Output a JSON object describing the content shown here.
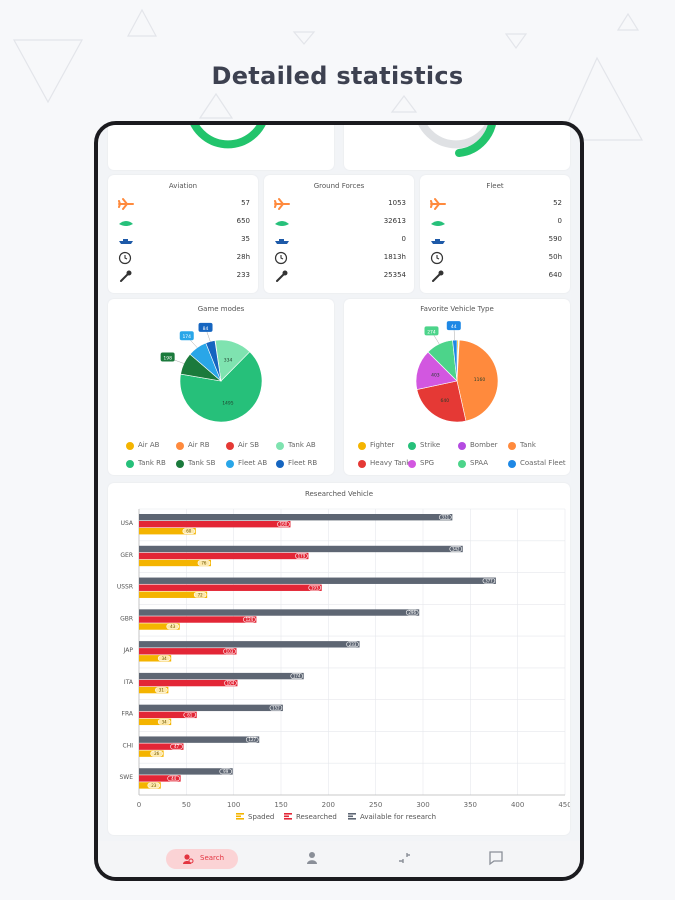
{
  "headline": "Detailed statistics",
  "stats": [
    {
      "title": "Aviation",
      "rows": [
        "57",
        "650",
        "35",
        "28h",
        "233"
      ]
    },
    {
      "title": "Ground Forces",
      "rows": [
        "1053",
        "32613",
        "0",
        "1813h",
        "25354"
      ]
    },
    {
      "title": "Fleet",
      "rows": [
        "52",
        "0",
        "590",
        "50h",
        "640"
      ]
    }
  ],
  "stat_icons": [
    "plane-icon",
    "tank-icon",
    "ship-icon",
    "clock-icon",
    "wrench-icon"
  ],
  "game_modes": {
    "title": "Game modes",
    "legend": [
      "Air AB",
      "Air RB",
      "Air SB",
      "Tank AB",
      "Tank RB",
      "Tank SB",
      "Fleet AB",
      "Fleet RB"
    ],
    "colors": [
      "#f4b400",
      "#ff8a3d",
      "#e53935",
      "#7fe3b0",
      "#26c07a",
      "#1b7a3c",
      "#29a6e8",
      "#1565c0"
    ],
    "values": [
      1,
      2,
      1,
      334,
      1495,
      198,
      174,
      84
    ],
    "slice_labels": [
      "",
      "",
      "",
      "334",
      "1495",
      "198",
      "174",
      "84"
    ]
  },
  "vehicle_types": {
    "title": "Favorite Vehicle Type",
    "legend": [
      "Fighter",
      "Strike",
      "Bomber",
      "Tank",
      "Heavy Tank",
      "SPG",
      "SPAA",
      "Coastal Fleet"
    ],
    "colors": [
      "#f4b400",
      "#26c07a",
      "#b44be1",
      "#ff8a3d",
      "#e53935",
      "#d257e0",
      "#4cd48a",
      "#1e88e5"
    ],
    "values": [
      15,
      6,
      2,
      1160,
      640,
      403,
      274,
      44
    ],
    "slice_labels": [
      "",
      "",
      "",
      "1160",
      "640",
      "403",
      "274",
      "44"
    ]
  },
  "chart_data": {
    "type": "bar",
    "title": "Researched Vehicle",
    "categories": [
      "USA",
      "GER",
      "USSR",
      "GBR",
      "JAP",
      "ITA",
      "FRA",
      "CHI",
      "SWE"
    ],
    "series": [
      {
        "name": "Spaded",
        "color": "#f4b400",
        "values": [
          60,
          76,
          72,
          43,
          34,
          31,
          34,
          26,
          23
        ]
      },
      {
        "name": "Researched",
        "color": "#e32636",
        "values": [
          160,
          179,
          193,
          124,
          103,
          104,
          61,
          47,
          44
        ]
      },
      {
        "name": "Available for research",
        "color": "#5e6673",
        "values": [
          331,
          342,
          377,
          296,
          233,
          174,
          152,
          127,
          99
        ]
      }
    ],
    "xlim": [
      0,
      450
    ],
    "xticks": [
      "0",
      "50",
      "100",
      "150",
      "200",
      "250",
      "300",
      "350",
      "400",
      "450"
    ],
    "orientation": "horizontal",
    "grid": true,
    "legend_position": "bottom"
  },
  "nav": {
    "active_label": "Search",
    "items": [
      "search-icon",
      "profile-icon",
      "compare-icon",
      "chat-icon"
    ]
  }
}
